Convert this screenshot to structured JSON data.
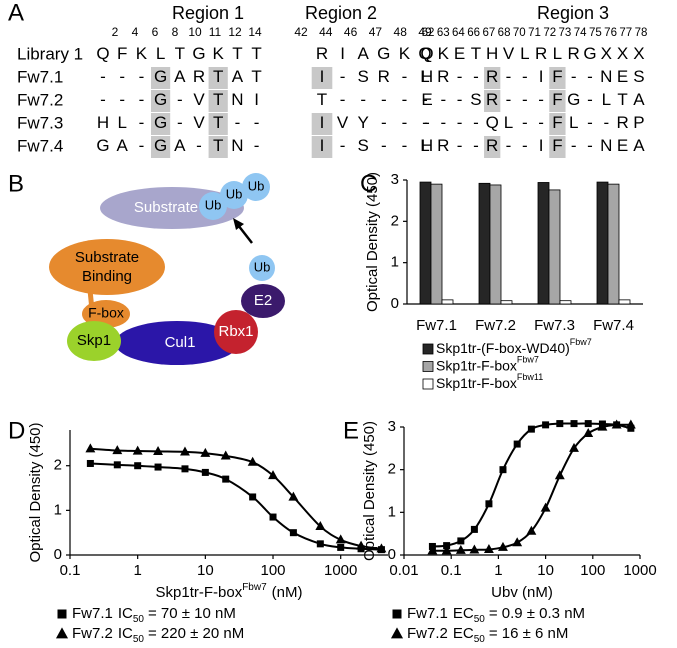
{
  "panel_labels": [
    "A",
    "B",
    "C",
    "D",
    "E"
  ],
  "alignment": {
    "regions": [
      {
        "title": "Region 1",
        "positions": [
          2,
          4,
          6,
          8,
          10,
          11,
          12,
          14
        ]
      },
      {
        "title": "Region 2",
        "positions": [
          42,
          44,
          46,
          47,
          48,
          49
        ]
      },
      {
        "title": "Region 3",
        "positions": [
          62,
          63,
          64,
          66,
          67,
          68,
          70,
          71,
          72,
          73,
          74,
          75,
          76,
          77,
          78
        ]
      }
    ],
    "rows": [
      {
        "name": "Library 1",
        "segments": [
          "QFKLTGKTT",
          "RIAGKQ",
          "QKETHVLRLRGXXX"
        ]
      },
      {
        "name": "Fw7.1",
        "segments": [
          "---GARTAT",
          "I-SR-L",
          "HR--R--IF--NES"
        ]
      },
      {
        "name": "Fw7.2",
        "segments": [
          "---G-VTNI",
          "T-----",
          "E--SR---FG-LTA"
        ]
      },
      {
        "name": "Fw7.3",
        "segments": [
          "HL-G-VT--",
          "IVY---",
          "----QL--FL--RP"
        ]
      },
      {
        "name": "Fw7.4",
        "segments": [
          "GA-GA-TN-",
          "I-S--L",
          "HR--R--IF--NEA"
        ]
      }
    ]
  },
  "diagram": {
    "substrate": "Substrate",
    "ubiquitin_chain": [
      "Ub",
      "Ub",
      "Ub"
    ],
    "ubiquitin_e2": "Ub",
    "substrate_binding": [
      "Substrate",
      "Binding"
    ],
    "f_box": "F-box",
    "skp1": "Skp1",
    "cul1": "Cul1",
    "rbx1": "Rbx1",
    "e2": "E2"
  },
  "chart_data": [
    {
      "type": "bar",
      "y_label": "Optical Density (450)",
      "categories": [
        "Fw7.1",
        "Fw7.2",
        "Fw7.3",
        "Fw7.4"
      ],
      "series": [
        {
          "name": "Skp1tr-(F-box-WD40)",
          "name_superscript": "Fbw7",
          "color": "#262626",
          "values": [
            2.95,
            2.92,
            2.94,
            2.95
          ]
        },
        {
          "name": "Skp1tr-F-box",
          "name_superscript": "Fbw7",
          "color": "#a6a6a6",
          "values": [
            2.9,
            2.88,
            2.76,
            2.9
          ]
        },
        {
          "name": "Skp1tr-F-box",
          "name_superscript": "Fbw11",
          "color": "#ffffff",
          "values": [
            0.1,
            0.08,
            0.08,
            0.1
          ]
        }
      ],
      "ylim": [
        0,
        3
      ],
      "yticks": [
        0,
        1,
        2,
        3
      ]
    },
    {
      "type": "line",
      "x_scale": "log",
      "y_label": "Optical Density (450)",
      "x_label": "Skp1tr-F-box",
      "x_label_superscript": "Fbw7",
      "x_label_suffix": "(nM)",
      "series": [
        {
          "name": "Fw7.1",
          "marker": "square",
          "color": "#000000",
          "stat": "IC",
          "stat_subscript": "50",
          "stat_text": "= 70 ± 10 nM",
          "x": [
            0.2,
            0.5,
            1,
            2,
            5,
            10,
            20,
            50,
            100,
            200,
            500,
            1000,
            2000,
            4000
          ],
          "values": [
            2.05,
            2.02,
            2,
            1.97,
            1.93,
            1.85,
            1.7,
            1.3,
            0.85,
            0.5,
            0.25,
            0.17,
            0.14,
            0.12
          ]
        },
        {
          "name": "Fw7.2",
          "marker": "triangle",
          "color": "#000000",
          "stat": "IC",
          "stat_subscript": "50",
          "stat_text": "= 220 ± 20 nM",
          "x": [
            0.2,
            0.5,
            1,
            2,
            5,
            10,
            20,
            50,
            100,
            200,
            500,
            1000,
            2000,
            4000
          ],
          "values": [
            2.38,
            2.34,
            2.33,
            2.32,
            2.31,
            2.28,
            2.22,
            2.08,
            1.78,
            1.3,
            0.64,
            0.34,
            0.2,
            0.14
          ]
        }
      ],
      "xlim": [
        0.1,
        5000
      ],
      "xticks": [
        0.1,
        1,
        10,
        100,
        1000
      ],
      "ylim": [
        0,
        2.8
      ],
      "yticks": [
        0,
        1,
        2
      ]
    },
    {
      "type": "line",
      "x_scale": "log",
      "y_label": "Optical Density (450)",
      "x_label": "Ubv (nM)",
      "series": [
        {
          "name": "Fw7.1",
          "marker": "square",
          "color": "#000000",
          "stat": "EC",
          "stat_subscript": "50",
          "stat_text": "= 0.9 ± 0.3 nM",
          "x": [
            0.04,
            0.08,
            0.16,
            0.31,
            0.63,
            1.25,
            2.5,
            5,
            10,
            20,
            40,
            80,
            160,
            320,
            640
          ],
          "values": [
            0.2,
            0.22,
            0.33,
            0.6,
            1.2,
            2,
            2.6,
            2.95,
            3.05,
            3.08,
            3.08,
            3.08,
            3.07,
            3.05,
            2.97
          ]
        },
        {
          "name": "Fw7.2",
          "marker": "triangle",
          "color": "#000000",
          "stat": "EC",
          "stat_subscript": "50",
          "stat_text": "= 16 ± 6 nM",
          "x": [
            0.04,
            0.08,
            0.16,
            0.31,
            0.63,
            1.25,
            2.5,
            5,
            10,
            20,
            40,
            80,
            160,
            320,
            640
          ],
          "values": [
            0.1,
            0.1,
            0.11,
            0.12,
            0.13,
            0.18,
            0.29,
            0.56,
            1.1,
            1.86,
            2.5,
            2.85,
            3,
            3.05,
            3.05
          ]
        }
      ],
      "xlim": [
        0.01,
        1000
      ],
      "xticks": [
        0.01,
        0.1,
        1,
        10,
        100,
        1000
      ],
      "ylim": [
        0,
        3
      ],
      "yticks": [
        0,
        1,
        2,
        3
      ]
    }
  ]
}
